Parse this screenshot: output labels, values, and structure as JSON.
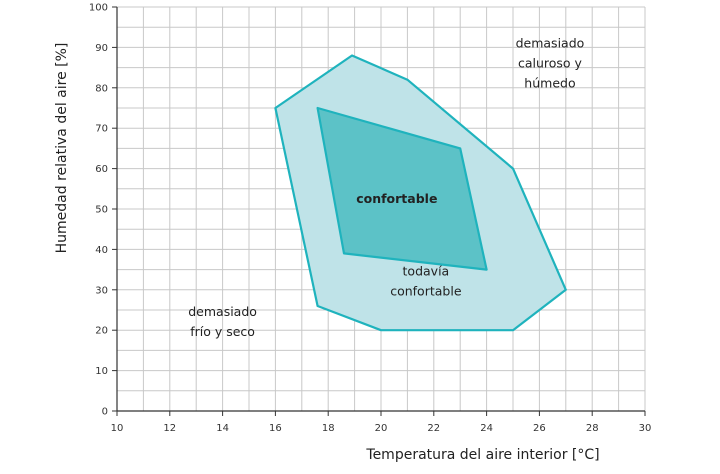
{
  "chart_data": {
    "type": "area",
    "xlabel": "Temperatura del aire interior [°C]",
    "ylabel": "Humedad relativa del aire [%]",
    "xlim": [
      10,
      30
    ],
    "ylim": [
      0,
      100
    ],
    "x_ticks": [
      10,
      12,
      14,
      16,
      18,
      20,
      22,
      24,
      26,
      28,
      30
    ],
    "y_ticks": [
      0,
      10,
      20,
      30,
      40,
      50,
      60,
      70,
      80,
      90,
      100
    ],
    "x_minor_step": 1,
    "y_minor_step": 5,
    "grid": true,
    "regions": [
      {
        "name": "todavía confortable",
        "fill": "#bfe3e8",
        "stroke": "#1fb3bd",
        "points": [
          [
            16,
            75
          ],
          [
            18.9,
            88
          ],
          [
            21,
            82
          ],
          [
            25,
            60
          ],
          [
            27,
            30
          ],
          [
            25,
            20
          ],
          [
            20,
            20
          ],
          [
            17.6,
            26
          ]
        ]
      },
      {
        "name": "confortable",
        "fill": "#5cc2c7",
        "stroke": "#1fb3bd",
        "points": [
          [
            17.6,
            75
          ],
          [
            23,
            65
          ],
          [
            24,
            35
          ],
          [
            18.6,
            39
          ]
        ]
      }
    ],
    "annotations": [
      {
        "lines": [
          "demasiado",
          "caluroso y",
          "húmedo"
        ],
        "x": 26.4,
        "y": 86
      },
      {
        "lines": [
          "confortable"
        ],
        "x": 20.6,
        "y": 52.5,
        "weight": "bold"
      },
      {
        "lines": [
          "todavía",
          "confortable"
        ],
        "x": 21.7,
        "y": 32
      },
      {
        "lines": [
          "demasiado",
          "frío y seco"
        ],
        "x": 14,
        "y": 22
      }
    ]
  }
}
